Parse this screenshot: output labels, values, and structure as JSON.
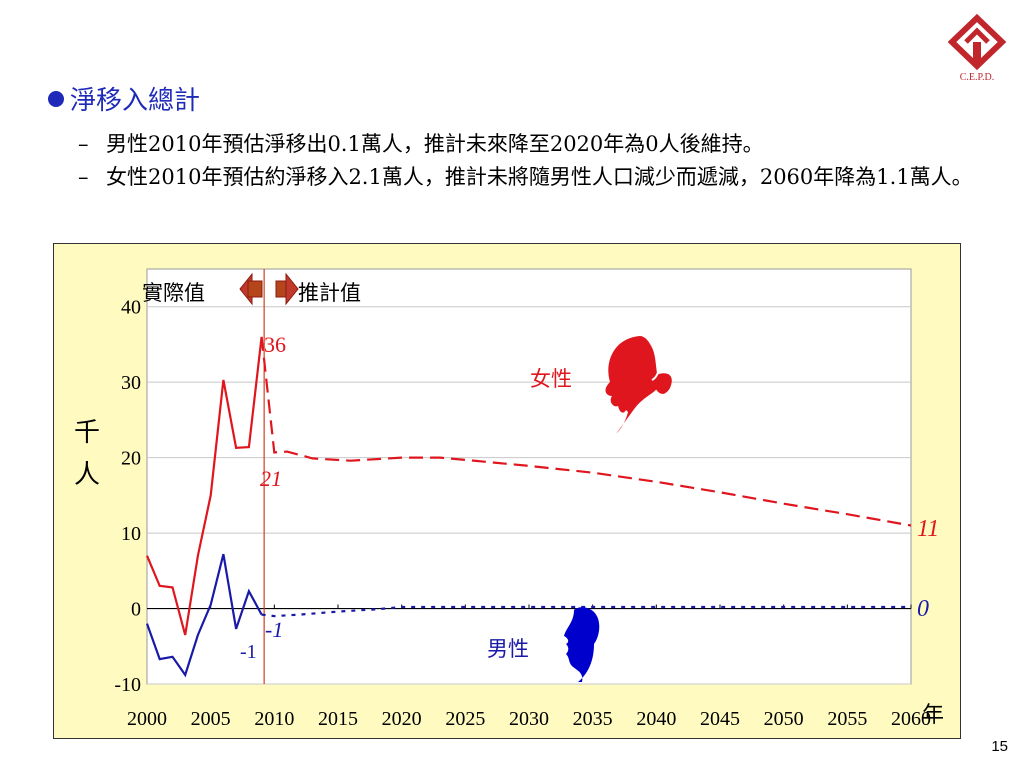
{
  "logo": {
    "text": "C.E.P.D.",
    "color": "#c0262c"
  },
  "heading": {
    "text": "淨移入總計",
    "color": "#1f2bb8"
  },
  "bullets": [
    {
      "dash": "–",
      "text": "男性2010年預估淨移出0.1萬人，推計未來降至2020年為0人後維持。"
    },
    {
      "dash": "–",
      "text": "女性2010年預估約淨移入2.1萬人，推計未將隨男性人口減少而遞減，2060年降為1.1萬人。"
    }
  ],
  "page_number": "15",
  "chart_data": {
    "type": "line",
    "ylabel": "千人",
    "xlabel_unit": "年",
    "xlim": [
      2000,
      2060
    ],
    "ylim": [
      -10,
      40
    ],
    "x_ticks": [
      "2000",
      "2005",
      "2010",
      "2015",
      "2020",
      "2025",
      "2030",
      "2035",
      "2040",
      "2045",
      "2050",
      "2055",
      "2060"
    ],
    "y_ticks": [
      "40",
      "30",
      "20",
      "10",
      "0",
      "-10"
    ],
    "grid": "horizontal",
    "divider_year": 2009.2,
    "labels": {
      "actual": "實際值",
      "projected": "推計值"
    },
    "series": [
      {
        "name": "女性",
        "color": "#e0161e",
        "actual": [
          [
            2000,
            7
          ],
          [
            2001,
            3
          ],
          [
            2002,
            2.8
          ],
          [
            2003,
            -3.5
          ],
          [
            2004,
            7
          ],
          [
            2005,
            15
          ],
          [
            2006,
            30.3
          ],
          [
            2007,
            21.3
          ],
          [
            2008,
            21.4
          ],
          [
            2009,
            36
          ]
        ],
        "projected": [
          [
            2009,
            36
          ],
          [
            2010,
            20.7
          ],
          [
            2011,
            20.8
          ],
          [
            2013,
            19.9
          ],
          [
            2016,
            19.6
          ],
          [
            2020,
            20
          ],
          [
            2023,
            20
          ],
          [
            2025,
            19.7
          ],
          [
            2030,
            18.9
          ],
          [
            2035,
            18
          ],
          [
            2040,
            16.8
          ],
          [
            2045,
            15.4
          ],
          [
            2050,
            13.9
          ],
          [
            2055,
            12.5
          ],
          [
            2060,
            11
          ]
        ]
      },
      {
        "name": "男性",
        "color": "#1a1aa8",
        "actual": [
          [
            2000,
            -2
          ],
          [
            2001,
            -6.7
          ],
          [
            2002,
            -6.4
          ],
          [
            2003,
            -8.8
          ],
          [
            2004,
            -3.5
          ],
          [
            2005,
            0.5
          ],
          [
            2006,
            7.2
          ],
          [
            2007,
            -2.7
          ],
          [
            2008,
            2.3
          ],
          [
            2009,
            -0.8
          ]
        ],
        "projected": [
          [
            2009,
            -0.8
          ],
          [
            2010,
            -1
          ],
          [
            2012,
            -0.8
          ],
          [
            2015,
            -0.4
          ],
          [
            2018,
            -0.1
          ],
          [
            2020,
            0.2
          ],
          [
            2025,
            0.2
          ],
          [
            2030,
            0.2
          ],
          [
            2035,
            0.2
          ],
          [
            2040,
            0.2
          ],
          [
            2045,
            0.2
          ],
          [
            2050,
            0.2
          ],
          [
            2055,
            0.2
          ],
          [
            2060,
            0.2
          ]
        ]
      }
    ],
    "annotations": {
      "female_peak": "36",
      "female_2010": "21",
      "female_2060": "11",
      "male_actual_end": "-1",
      "male_2010": "-1",
      "male_2060": "0",
      "female_legend": "女性",
      "male_legend": "男性"
    }
  }
}
